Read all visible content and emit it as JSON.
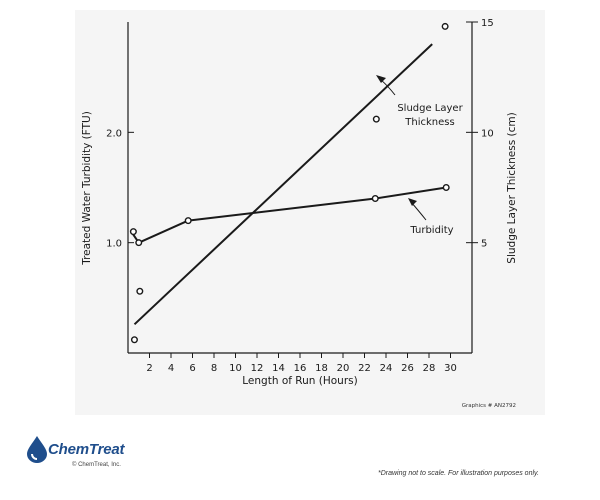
{
  "chart_data": {
    "type": "line",
    "xlabel": "Length of Run (Hours)",
    "ylabel_left": "Treated Water Turbidity (FTU)",
    "ylabel_right": "Sludge Layer Thickness (cm)",
    "xlim": [
      0,
      32
    ],
    "ylim_left": [
      0,
      3.0
    ],
    "ylim_right": [
      0,
      15
    ],
    "x_ticks": [
      2,
      4,
      6,
      8,
      10,
      12,
      14,
      16,
      18,
      20,
      22,
      24,
      26,
      28,
      30
    ],
    "y_left_ticks": [
      {
        "value": 1.0,
        "label": "1.0"
      },
      {
        "value": 2.0,
        "label": "2.0"
      }
    ],
    "y_right_ticks": [
      {
        "value": 5,
        "label": "5"
      },
      {
        "value": 10,
        "label": "10"
      },
      {
        "value": 15,
        "label": "15"
      }
    ],
    "series": [
      {
        "name": "Turbidity",
        "axis": "left",
        "line": [
          [
            0.3,
            1.1
          ],
          [
            1.0,
            1.0
          ],
          [
            5.6,
            1.2
          ],
          [
            23.0,
            1.4
          ],
          [
            29.6,
            1.5
          ]
        ],
        "points": [
          [
            0.5,
            1.1
          ],
          [
            1.0,
            1.0
          ],
          [
            5.6,
            1.2
          ],
          [
            23.0,
            1.4
          ],
          [
            29.6,
            1.5
          ]
        ]
      },
      {
        "name": "Sludge Layer Thickness",
        "axis": "right",
        "line": [
          [
            0.6,
            1.3
          ],
          [
            28.3,
            14.0
          ]
        ],
        "points": [
          [
            0.6,
            0.6
          ],
          [
            1.1,
            2.8
          ],
          [
            23.1,
            10.6
          ],
          [
            29.5,
            14.8
          ]
        ]
      }
    ],
    "annotations": [
      {
        "lines": [
          "Sludge Layer",
          "Thickness"
        ],
        "series": "Sludge Layer Thickness"
      },
      {
        "lines": [
          "Turbidity"
        ],
        "series": "Turbidity"
      }
    ],
    "credit": "Graphics # AN2792"
  },
  "logo": {
    "brand": "ChemTreat",
    "copyright": "© ChemTreat, Inc."
  },
  "disclaimer": "*Drawing not to scale. For illustration purposes only.",
  "colors": {
    "ink": "#1a1a1a",
    "panel": "#f5f5f5",
    "brand": "#1f4e8c"
  }
}
